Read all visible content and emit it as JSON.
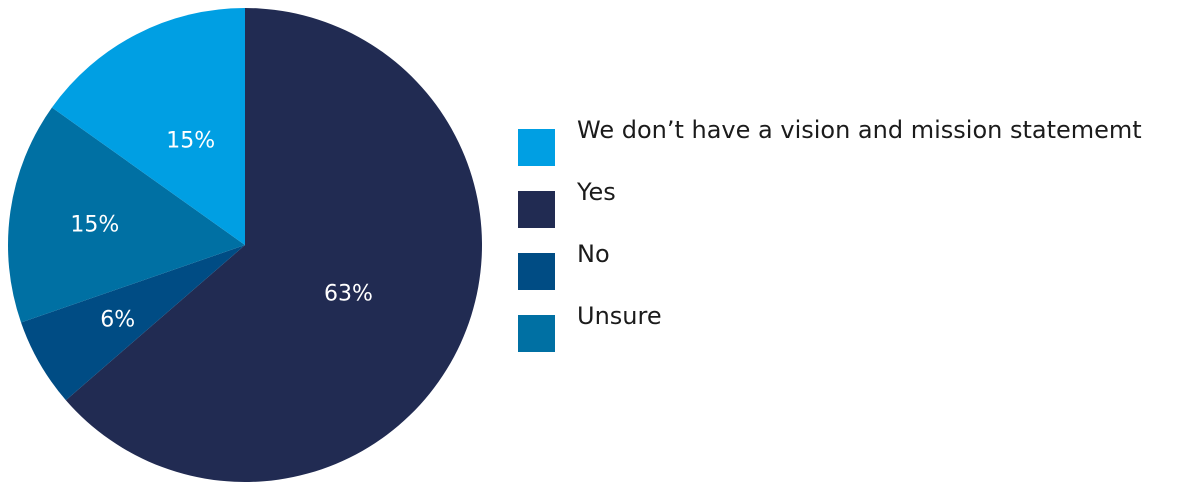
{
  "chart_data": {
    "type": "pie",
    "title": "",
    "slices": [
      {
        "label": "Yes",
        "value": 63,
        "display": "63%",
        "color": "#212b52"
      },
      {
        "label": "No",
        "value": 6,
        "display": "6%",
        "color": "#004c84"
      },
      {
        "label": "Unsure",
        "value": 15,
        "display": "15%",
        "color": "#0070a3"
      },
      {
        "label": "We don’t have a vision and mission statememt",
        "value": 15,
        "display": "15%",
        "color": "#009fe3"
      }
    ],
    "legend": {
      "position": "right",
      "items": [
        {
          "label": "We don’t have a vision and mission statememt",
          "color": "#009fe3"
        },
        {
          "label": "Yes",
          "color": "#212b52"
        },
        {
          "label": "No",
          "color": "#004c84"
        },
        {
          "label": "Unsure",
          "color": "#0070a3"
        }
      ]
    }
  }
}
